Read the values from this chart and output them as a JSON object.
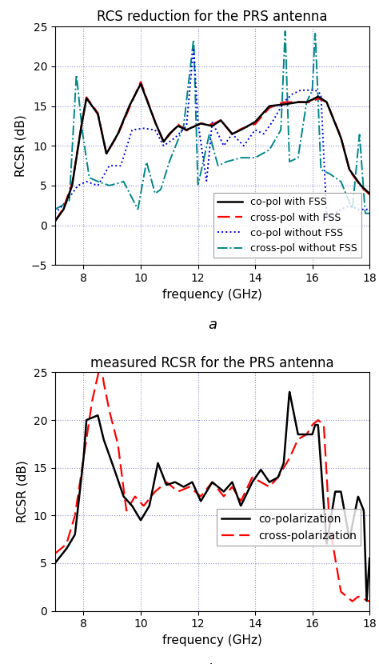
{
  "title1": "RCS reduction for the PRS antenna",
  "title2": "measured RCSR for the PRS antenna",
  "xlabel": "frequency (GHz)",
  "ylabel": "RCSR (dB)",
  "label_a": "a",
  "label_b": "b",
  "xlim": [
    7,
    18
  ],
  "xticks": [
    8,
    10,
    12,
    14,
    16,
    18
  ],
  "ylim1": [
    -5,
    25
  ],
  "yticks1": [
    -5,
    0,
    5,
    10,
    15,
    20,
    25
  ],
  "ylim2": [
    0,
    25
  ],
  "yticks2": [
    0,
    5,
    10,
    15,
    20,
    25
  ],
  "grid_color": "#6666cc",
  "legend1": [
    "co-pol with FSS",
    "cross-pol with FSS",
    "co-pol without FSS",
    "cross-pol without FSS"
  ],
  "legend2": [
    "co-polarization",
    "cross-polarization"
  ],
  "colors1": [
    "#000000",
    "#ff0000",
    "#0000ee",
    "#008888"
  ],
  "colors2": [
    "#000000",
    "#ff0000"
  ],
  "bg_color": "#ffffff"
}
